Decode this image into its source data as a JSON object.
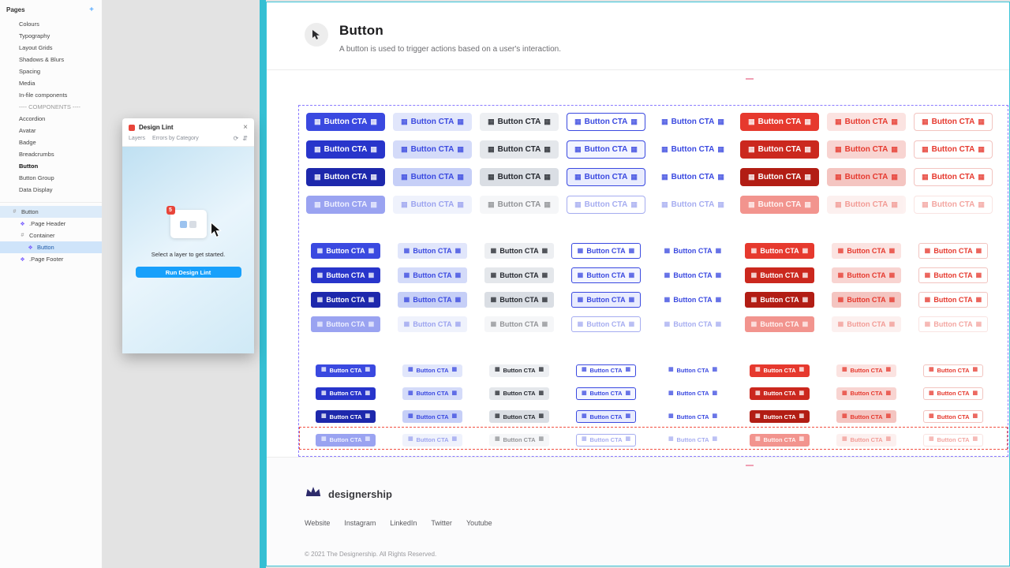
{
  "sidebar": {
    "pages_title": "Pages",
    "add_label": "+",
    "pages": [
      "Colours",
      "Typography",
      "Layout Grids",
      "Shadows & Blurs",
      "Spacing",
      "Media",
      "In-file components",
      "---- COMPONENTS ----",
      "Accordion",
      "Avatar",
      "Badge",
      "Breadcrumbs",
      "Button",
      "Button Group",
      "Data Display"
    ],
    "active_page": "Button",
    "layers": [
      {
        "label": "Button",
        "icon": "frame-icon",
        "depth": 0,
        "state": "highlighted"
      },
      {
        "label": ".Page Header",
        "icon": "component-icon",
        "depth": 1,
        "state": "normal"
      },
      {
        "label": "Container",
        "icon": "frame-icon",
        "depth": 1,
        "state": "normal"
      },
      {
        "label": "Button",
        "icon": "component-icon",
        "depth": 2,
        "state": "selected"
      },
      {
        "label": ".Page Footer",
        "icon": "component-icon",
        "depth": 1,
        "state": "normal"
      }
    ]
  },
  "plugin": {
    "title": "Design Lint",
    "close_label": "×",
    "tabs": [
      "Layers",
      "Errors by Category"
    ],
    "tab_icons": [
      "refresh-icon",
      "sort-icon"
    ],
    "badge": "5",
    "empty_message": "Select a layer to get started.",
    "cta_label": "Run Design Lint"
  },
  "page": {
    "title": "Button",
    "subtitle": "A button is used to trigger actions based on a user's interaction."
  },
  "grid": {
    "button_label": "Button CTA",
    "columns": [
      {
        "name": "primary-solid"
      },
      {
        "name": "primary-tint"
      },
      {
        "name": "neutral"
      },
      {
        "name": "primary-outline"
      },
      {
        "name": "primary-ghost"
      },
      {
        "name": "danger-solid"
      },
      {
        "name": "danger-tint"
      },
      {
        "name": "danger-ghost"
      }
    ],
    "sizes": [
      "large",
      "medium",
      "small"
    ],
    "states": [
      "default",
      "hover",
      "pressed",
      "disabled"
    ]
  },
  "footer": {
    "brand": "designership",
    "links": [
      "Website",
      "Instagram",
      "LinkedIn",
      "Twitter",
      "Youtube"
    ],
    "copyright": "© 2021 The Designership. All Rights Reserved."
  },
  "colors": {
    "primary": "#3a49e0",
    "danger": "#e6392e",
    "plugin_cta": "#18a0fb",
    "selection_purple": "#8a7bff",
    "selection_red": "#f25042",
    "frame_border": "#3cc5d8"
  }
}
